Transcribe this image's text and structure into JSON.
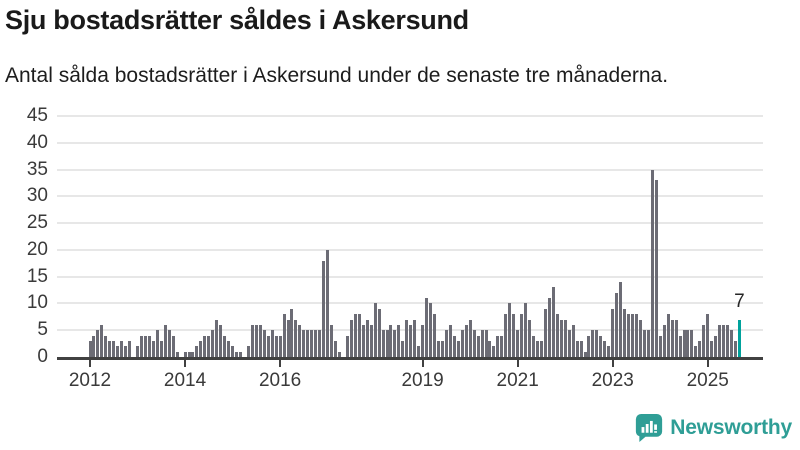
{
  "header": {
    "title": "Sju bostadsrätter såldes i Askersund",
    "subtitle": "Antal sålda bostadsrätter i Askersund under de senaste tre månaderna."
  },
  "chart_data": {
    "type": "bar",
    "title": "Sju bostadsrätter såldes i Askersund",
    "subtitle": "Antal sålda bostadsrätter i Askersund under de senaste tre månaderna.",
    "frequency": "monthly",
    "start": "2012-01",
    "end": "2025-09",
    "ylim": [
      0,
      45
    ],
    "yticks": [
      0,
      5,
      10,
      15,
      20,
      25,
      30,
      35,
      40,
      45
    ],
    "grid": true,
    "bar_color": "#6c6c75",
    "values": [
      3,
      4,
      5,
      6,
      4,
      3,
      3,
      2,
      3,
      2,
      3,
      0,
      2,
      4,
      4,
      4,
      3,
      5,
      3,
      6,
      5,
      4,
      1,
      0,
      1,
      1,
      1,
      2,
      3,
      4,
      4,
      5,
      7,
      6,
      4,
      3,
      2,
      1,
      1,
      0,
      2,
      6,
      6,
      6,
      5,
      4,
      5,
      4,
      4,
      8,
      7,
      9,
      7,
      6,
      5,
      5,
      5,
      5,
      5,
      18,
      20,
      6,
      3,
      1,
      0,
      4,
      7,
      8,
      8,
      6,
      7,
      6,
      10,
      9,
      5,
      5,
      6,
      5,
      6,
      3,
      7,
      6,
      7,
      2,
      6,
      11,
      10,
      8,
      3,
      3,
      5,
      6,
      4,
      3,
      5,
      6,
      7,
      5,
      4,
      5,
      5,
      3,
      2,
      4,
      4,
      8,
      10,
      8,
      5,
      8,
      10,
      7,
      4,
      3,
      3,
      9,
      11,
      13,
      8,
      7,
      7,
      5,
      6,
      3,
      3,
      1,
      4,
      5,
      5,
      4,
      3,
      2,
      9,
      12,
      14,
      9,
      8,
      8,
      8,
      7,
      5,
      5,
      35,
      33,
      4,
      6,
      8,
      7,
      7,
      4,
      5,
      5,
      5,
      2,
      3,
      6,
      8,
      3,
      4,
      6,
      6,
      6,
      5,
      3,
      7
    ],
    "xticks": [
      {
        "label": "2012",
        "month_index": 0
      },
      {
        "label": "2014",
        "month_index": 24
      },
      {
        "label": "2016",
        "month_index": 48
      },
      {
        "label": "2019",
        "month_index": 84
      },
      {
        "label": "2021",
        "month_index": 108
      },
      {
        "label": "2023",
        "month_index": 132
      },
      {
        "label": "2025",
        "month_index": 156
      }
    ],
    "highlight": {
      "index": 164,
      "value": 7,
      "label": "7",
      "color": "#00a29c"
    }
  },
  "footer": {
    "brand": "Newsworthy",
    "brand_color": "#2f9e96",
    "logo_icon": "bar-chart-speech-bubble-icon"
  }
}
